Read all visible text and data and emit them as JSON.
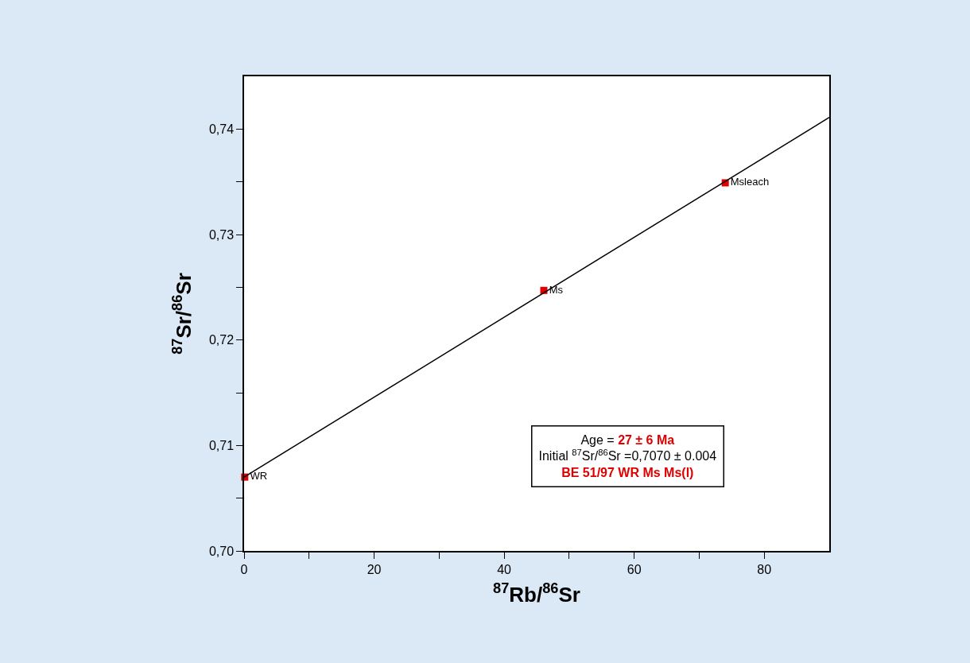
{
  "chart_data": {
    "type": "scatter",
    "xlabel": "$^{87}$Rb/$^{86}$Sr",
    "ylabel": "$^{87}$Sr/$^{86}$Sr",
    "xlim": [
      0,
      90
    ],
    "ylim": [
      0.7,
      0.745
    ],
    "xticks": [
      0,
      {
        "value": 10,
        "label": null
      },
      20,
      {
        "value": 30,
        "label": null
      },
      40,
      {
        "value": 50,
        "label": null
      },
      60,
      {
        "value": 70,
        "label": null
      },
      80
    ],
    "yticks": [
      {
        "value": 0.7,
        "label": "0,70"
      },
      {
        "value": 0.705,
        "label": null
      },
      {
        "value": 0.71,
        "label": "0,71"
      },
      {
        "value": 0.715,
        "label": null
      },
      {
        "value": 0.72,
        "label": "0,72"
      },
      {
        "value": 0.725,
        "label": null
      },
      {
        "value": 0.73,
        "label": "0,73"
      },
      {
        "value": 0.735,
        "label": null
      },
      {
        "value": 0.74,
        "label": "0,74"
      }
    ],
    "series": [
      {
        "name": "WR",
        "marker": "square",
        "color": "#e00000",
        "x": [
          0.1
        ],
        "values": [
          0.707
        ]
      },
      {
        "name": "Ms",
        "marker": "square",
        "color": "#e00000",
        "x": [
          46.1
        ],
        "values": [
          0.7247
        ]
      },
      {
        "name": "Msleach",
        "marker": "square",
        "color": "#e00000",
        "x": [
          74.0
        ],
        "values": [
          0.7349
        ]
      },
      {
        "type": "line",
        "marker": "none",
        "color": "#000000",
        "x": [
          0,
          90
        ],
        "values": [
          0.707,
          0.7411
        ]
      }
    ],
    "annotations": [
      "Age = 27 ± 6 Ma",
      "Initial $^{87}$Sr/$^{86}$Sr =0,7070 ± 0.004",
      "BE 51/97 WR Ms Ms(l)"
    ]
  }
}
